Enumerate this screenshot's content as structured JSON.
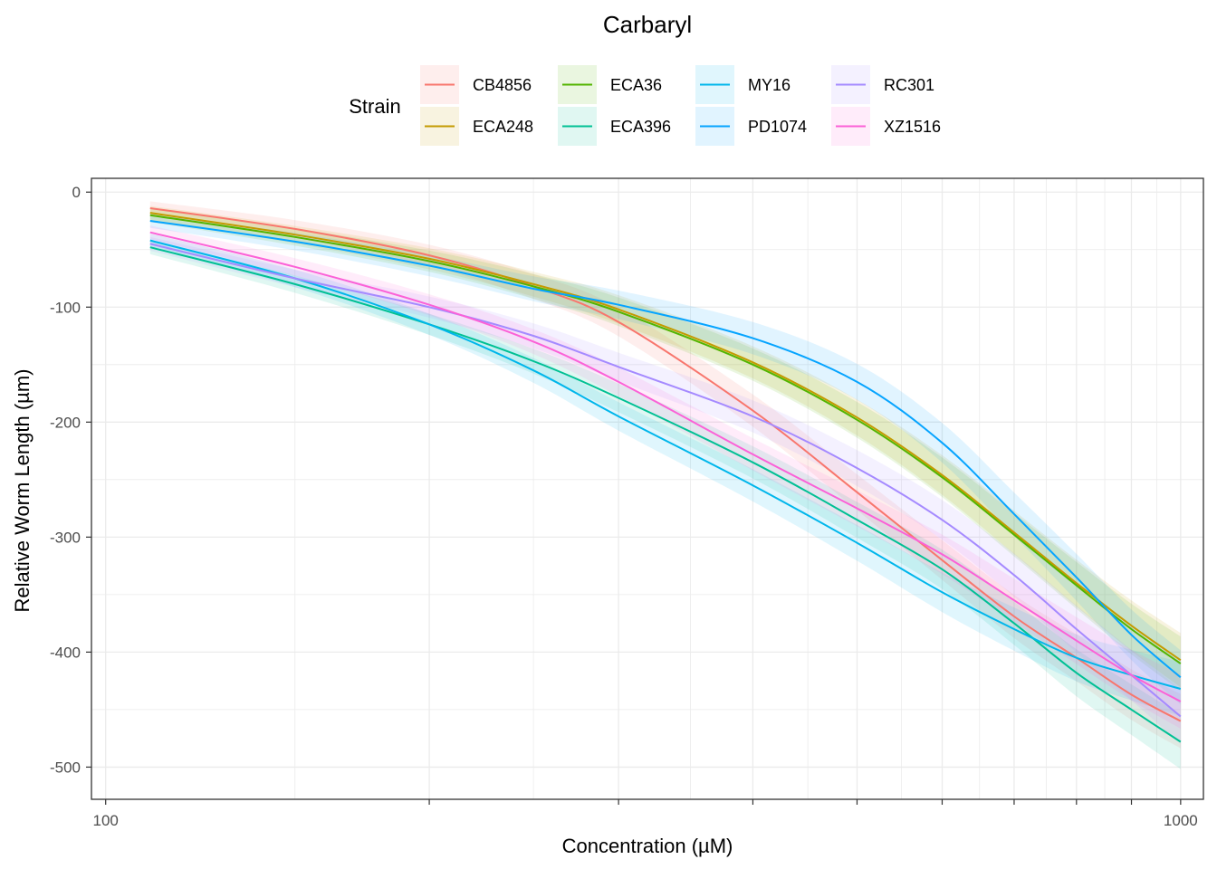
{
  "chart_data": {
    "type": "line",
    "title": "Carbaryl",
    "xlabel": "Concentration (µM)",
    "ylabel": "Relative Worm Length (µm)",
    "x_scale": "log10",
    "xlim": [
      97,
      1050
    ],
    "ylim": [
      -528,
      12
    ],
    "x_ticks": [
      100,
      1000
    ],
    "x_tick_labels": [
      "100",
      "1000"
    ],
    "y_ticks": [
      0,
      -100,
      -200,
      -300,
      -400,
      -500
    ],
    "y_tick_labels": [
      "0",
      "-100",
      "-200",
      "-300",
      "-400",
      "-500"
    ],
    "grid": true,
    "legend": {
      "title": "Strain",
      "position": "top"
    },
    "x": [
      110,
      150,
      200,
      250,
      300,
      400,
      500,
      600,
      700,
      800,
      900,
      1000
    ],
    "series": [
      {
        "name": "CB4856",
        "color": "#F8766D",
        "values": [
          -14,
          -32,
          -55,
          -82,
          -113,
          -190,
          -261,
          -320,
          -369,
          -405,
          -437,
          -460
        ]
      },
      {
        "name": "ECA248",
        "color": "#C49A00",
        "values": [
          -18,
          -37,
          -58,
          -80,
          -102,
          -148,
          -196,
          -246,
          -296,
          -340,
          -377,
          -407
        ]
      },
      {
        "name": "ECA36",
        "color": "#53B400",
        "values": [
          -20,
          -39,
          -60,
          -82,
          -104,
          -150,
          -198,
          -248,
          -298,
          -342,
          -380,
          -410
        ]
      },
      {
        "name": "ECA396",
        "color": "#00C094",
        "values": [
          -48,
          -80,
          -115,
          -147,
          -179,
          -235,
          -285,
          -328,
          -375,
          -418,
          -450,
          -478
        ]
      },
      {
        "name": "MY16",
        "color": "#00B6EB",
        "values": [
          -42,
          -75,
          -115,
          -155,
          -195,
          -255,
          -305,
          -348,
          -380,
          -405,
          -420,
          -432
        ]
      },
      {
        "name": "PD1074",
        "color": "#06A4FF",
        "values": [
          -25,
          -43,
          -64,
          -84,
          -98,
          -127,
          -165,
          -218,
          -280,
          -335,
          -385,
          -422
        ]
      },
      {
        "name": "RC301",
        "color": "#A58AFF",
        "values": [
          -45,
          -75,
          -100,
          -125,
          -152,
          -195,
          -240,
          -285,
          -333,
          -380,
          -420,
          -456
        ]
      },
      {
        "name": "XZ1516",
        "color": "#FB61D7",
        "values": [
          -35,
          -65,
          -98,
          -130,
          -165,
          -228,
          -275,
          -315,
          -355,
          -390,
          -420,
          -443
        ]
      }
    ]
  }
}
